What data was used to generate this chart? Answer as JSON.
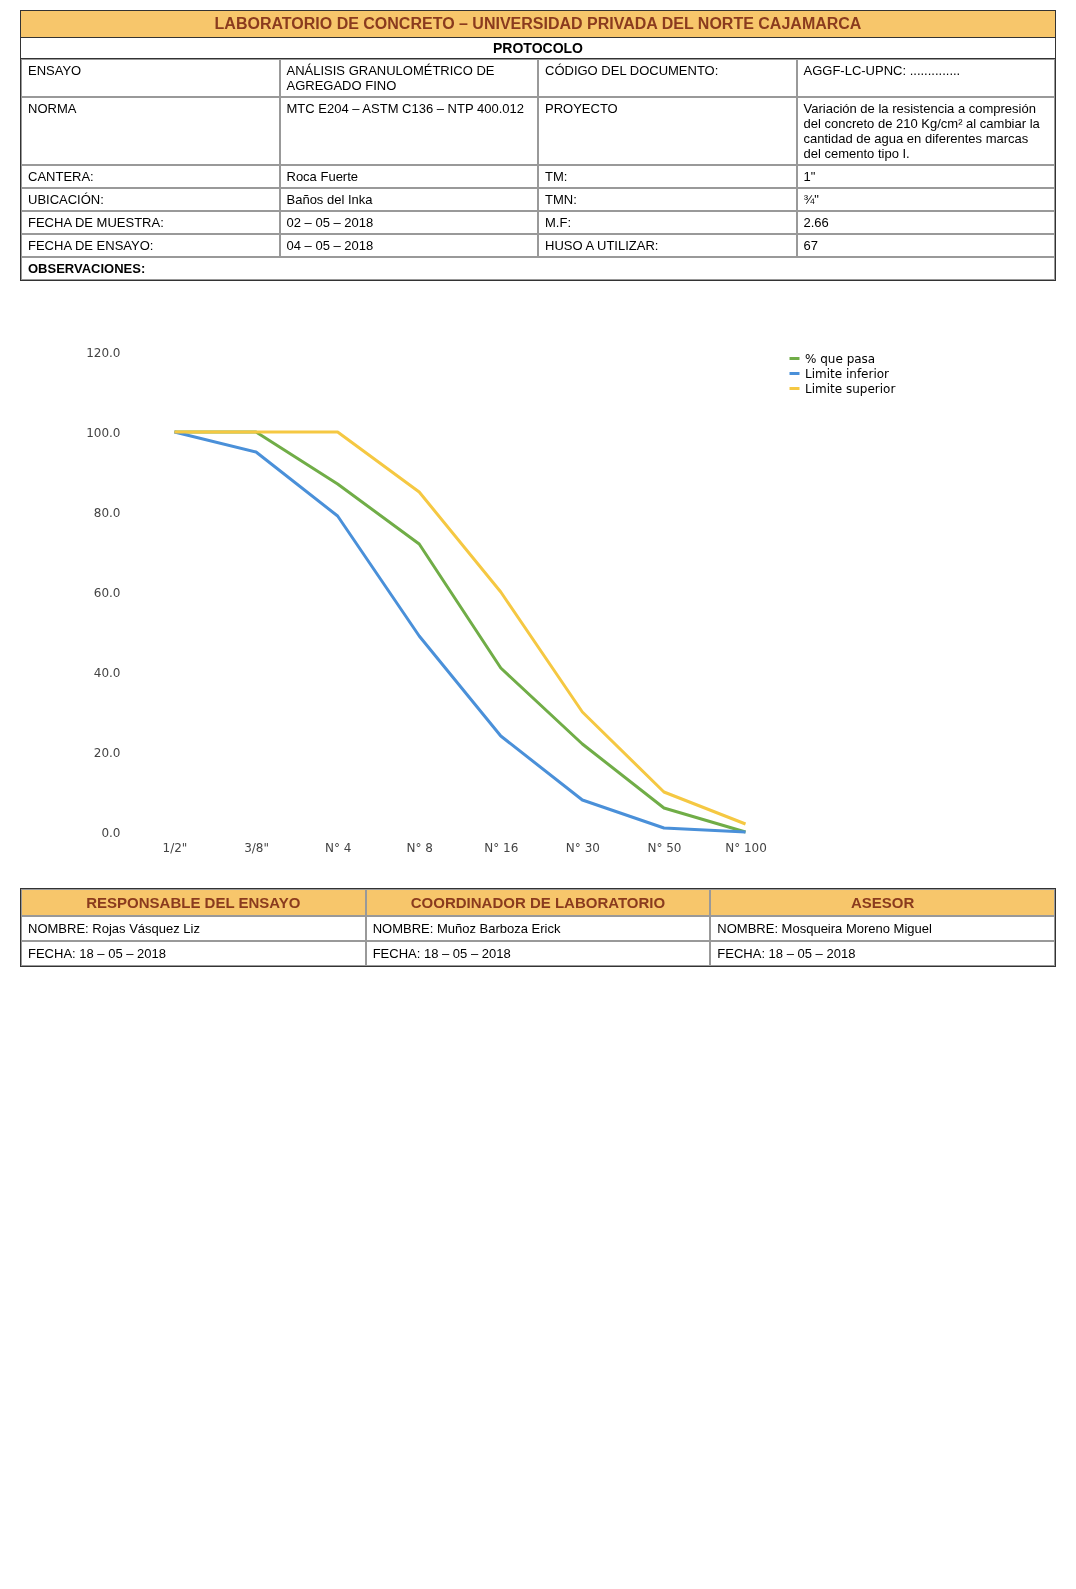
{
  "chart_data": {
    "type": "line",
    "title": "LABORATORIO DE CONCRETO – UNIVERSIDAD PRIVADA DEL NORTE CAJAMARCA",
    "subtitle": "PROTOCOLO",
    "annotations": [
      "ENSAYO",
      "ANÁLISIS GRANULOMÉTRICO DE AGREGADO FINO",
      "CÓDIGO DEL DOCUMENTO:",
      "AGGF-LC-UPNC: ..............",
      "NORMA",
      "MTC E204 – ASTM C136 – NTP 400.012",
      "PROYECTO",
      "Variación de la resistencia a compresión del concreto de 210 Kg/cm² al cambiar la cantidad de agua en diferentes marcas del cemento tipo I.",
      "CANTERA:",
      "Roca Fuerte",
      "TM:",
      "1\"",
      "UBICACIÓN:",
      "Baños del Inka",
      "TMN:",
      "¾\"",
      "FECHA DE MUESTRA:",
      "02 – 05 – 2018",
      "M.F:",
      "2.66",
      "FECHA DE ENSAYO:",
      "04 – 05 – 2018",
      "HUSO A UTILIZAR:",
      "67",
      "OBSERVACIONES:",
      "RESPONSABLE DEL ENSAYO",
      "COORDINADOR DE LABORATORIO",
      "ASESOR",
      "NOMBRE: Rojas Vásquez Liz",
      "NOMBRE: Muñoz Barboza Erick",
      "NOMBRE: Mosqueira Moreno Miguel",
      "FECHA: 18 – 05 – 2018",
      "FECHA: 18 – 05 – 2018",
      "FECHA: 18 – 05 – 2018"
    ],
    "categories": [
      "1/2\"",
      "3/8\"",
      "N° 4",
      "N° 8",
      "N° 16",
      "N° 30",
      "N° 50",
      "N° 100"
    ],
    "series": [
      {
        "name": "% que pasa",
        "color": "#70ad47",
        "values": [
          100,
          100,
          87,
          72,
          41,
          22,
          6,
          0
        ]
      },
      {
        "name": "Limite inferior",
        "color": "#4a90d9",
        "values": [
          100,
          95,
          79,
          49,
          24,
          8,
          1,
          0
        ]
      },
      {
        "name": "Limite superior",
        "color": "#f5c842",
        "values": [
          100,
          100,
          100,
          85,
          60,
          30,
          10,
          2
        ]
      }
    ],
    "ylim": [
      0,
      120
    ],
    "yticks": [
      {
        "value": 0,
        "label": "0.0"
      },
      {
        "value": 20,
        "label": "20.0"
      },
      {
        "value": 40,
        "label": "40.0"
      },
      {
        "value": 60,
        "label": "60.0"
      },
      {
        "value": 80,
        "label": "80.0"
      },
      {
        "value": 100,
        "label": "100.0"
      },
      {
        "value": 120,
        "label": "120.0"
      }
    ],
    "grid": false,
    "legend": "right",
    "marker": "none",
    "line_style": "solid"
  }
}
